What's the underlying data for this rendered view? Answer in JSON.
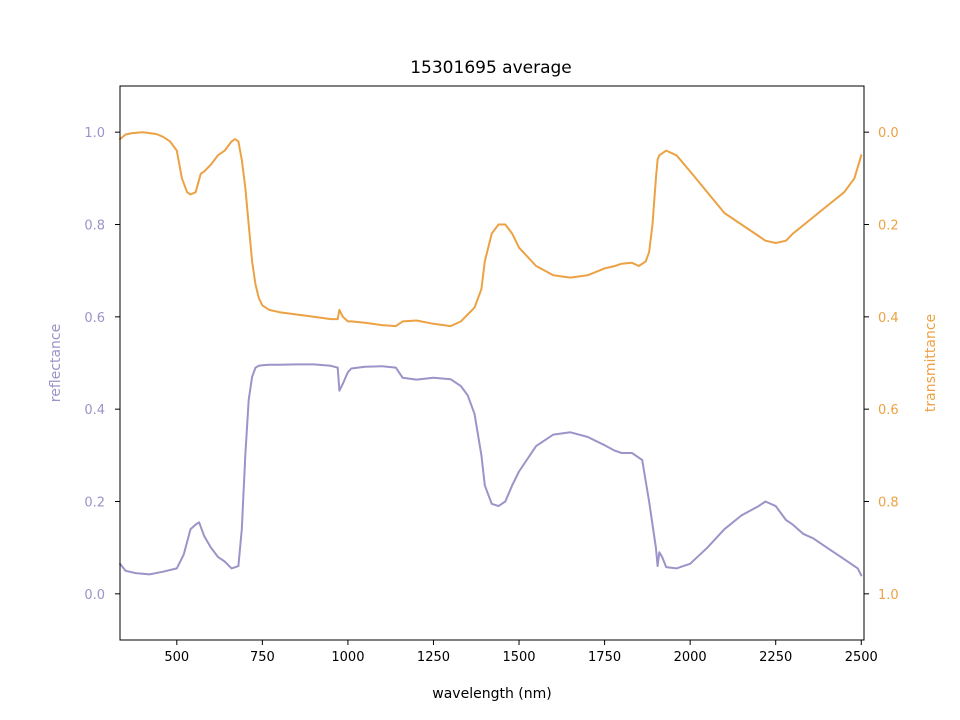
{
  "chart_data": {
    "type": "line",
    "title": "15301695 average",
    "xlabel": "wavelength (nm)",
    "ylabel_left": "reflectance",
    "ylabel_right": "transmittance",
    "xlim": [
      334,
      2508
    ],
    "ylim_left": [
      -0.1,
      1.1
    ],
    "ylim_right": [
      1.1,
      -0.1
    ],
    "right_axis_inverted": true,
    "xticks": [
      500,
      750,
      1000,
      1250,
      1500,
      1750,
      2000,
      2250,
      2500
    ],
    "yticks_left": [
      "0.0",
      "0.2",
      "0.4",
      "0.6",
      "0.8",
      "1.0"
    ],
    "yticks_right": [
      "0.0",
      "0.2",
      "0.4",
      "0.6",
      "0.8",
      "1.0"
    ],
    "grid": false,
    "legend": "none",
    "colors": {
      "reflectance": "#9a94c8",
      "transmittance": "#eca244",
      "axis": "#000000"
    },
    "series": [
      {
        "axis": "left",
        "color": "#9a94c8",
        "x": [
          334,
          350,
          380,
          420,
          460,
          500,
          520,
          540,
          555,
          565,
          580,
          600,
          620,
          640,
          660,
          680,
          690,
          700,
          710,
          720,
          730,
          740,
          750,
          770,
          800,
          850,
          900,
          950,
          970,
          975,
          985,
          1000,
          1010,
          1050,
          1100,
          1140,
          1160,
          1200,
          1250,
          1300,
          1330,
          1350,
          1370,
          1390,
          1400,
          1420,
          1440,
          1460,
          1480,
          1500,
          1550,
          1600,
          1650,
          1700,
          1750,
          1780,
          1800,
          1830,
          1860,
          1880,
          1900,
          1905,
          1910,
          1918,
          1930,
          1960,
          1980,
          2000,
          2050,
          2100,
          2150,
          2200,
          2220,
          2250,
          2280,
          2300,
          2330,
          2360,
          2400,
          2430,
          2450,
          2470,
          2490,
          2500
        ],
        "y": [
          0.065,
          0.05,
          0.045,
          0.042,
          0.048,
          0.055,
          0.085,
          0.14,
          0.15,
          0.155,
          0.125,
          0.1,
          0.08,
          0.07,
          0.055,
          0.06,
          0.14,
          0.3,
          0.42,
          0.47,
          0.49,
          0.494,
          0.495,
          0.496,
          0.496,
          0.497,
          0.497,
          0.494,
          0.49,
          0.44,
          0.455,
          0.48,
          0.488,
          0.492,
          0.493,
          0.49,
          0.468,
          0.464,
          0.468,
          0.465,
          0.45,
          0.43,
          0.39,
          0.3,
          0.235,
          0.195,
          0.19,
          0.2,
          0.235,
          0.265,
          0.32,
          0.345,
          0.35,
          0.34,
          0.322,
          0.31,
          0.305,
          0.305,
          0.29,
          0.2,
          0.1,
          0.06,
          0.09,
          0.08,
          0.058,
          0.055,
          0.06,
          0.065,
          0.1,
          0.14,
          0.17,
          0.19,
          0.2,
          0.19,
          0.16,
          0.15,
          0.13,
          0.12,
          0.1,
          0.085,
          0.075,
          0.065,
          0.055,
          0.04
        ]
      },
      {
        "axis": "right",
        "color": "#eca244",
        "x": [
          334,
          350,
          370,
          400,
          440,
          460,
          480,
          500,
          515,
          530,
          540,
          555,
          570,
          580,
          600,
          620,
          640,
          650,
          660,
          670,
          680,
          690,
          700,
          710,
          720,
          730,
          740,
          750,
          770,
          800,
          850,
          900,
          950,
          970,
          975,
          985,
          1000,
          1010,
          1050,
          1100,
          1140,
          1160,
          1200,
          1250,
          1300,
          1330,
          1350,
          1370,
          1390,
          1400,
          1420,
          1440,
          1460,
          1480,
          1500,
          1550,
          1600,
          1650,
          1700,
          1750,
          1780,
          1800,
          1830,
          1850,
          1870,
          1880,
          1890,
          1900,
          1905,
          1910,
          1920,
          1930,
          1960,
          2000,
          2050,
          2100,
          2150,
          2200,
          2220,
          2250,
          2280,
          2300,
          2350,
          2400,
          2450,
          2480,
          2500
        ],
        "y": [
          0.015,
          0.005,
          0.002,
          0.0,
          0.004,
          0.01,
          0.02,
          0.04,
          0.1,
          0.13,
          0.135,
          0.13,
          0.09,
          0.085,
          0.07,
          0.05,
          0.04,
          0.03,
          0.02,
          0.015,
          0.02,
          0.06,
          0.12,
          0.2,
          0.28,
          0.33,
          0.36,
          0.375,
          0.385,
          0.39,
          0.395,
          0.4,
          0.405,
          0.405,
          0.385,
          0.4,
          0.41,
          0.41,
          0.413,
          0.418,
          0.42,
          0.41,
          0.408,
          0.415,
          0.42,
          0.41,
          0.395,
          0.38,
          0.34,
          0.28,
          0.22,
          0.2,
          0.2,
          0.22,
          0.25,
          0.29,
          0.31,
          0.315,
          0.31,
          0.295,
          0.29,
          0.285,
          0.283,
          0.29,
          0.28,
          0.26,
          0.2,
          0.1,
          0.06,
          0.05,
          0.045,
          0.04,
          0.05,
          0.085,
          0.13,
          0.175,
          0.2,
          0.225,
          0.235,
          0.24,
          0.235,
          0.22,
          0.19,
          0.16,
          0.13,
          0.1,
          0.05
        ]
      }
    ]
  }
}
